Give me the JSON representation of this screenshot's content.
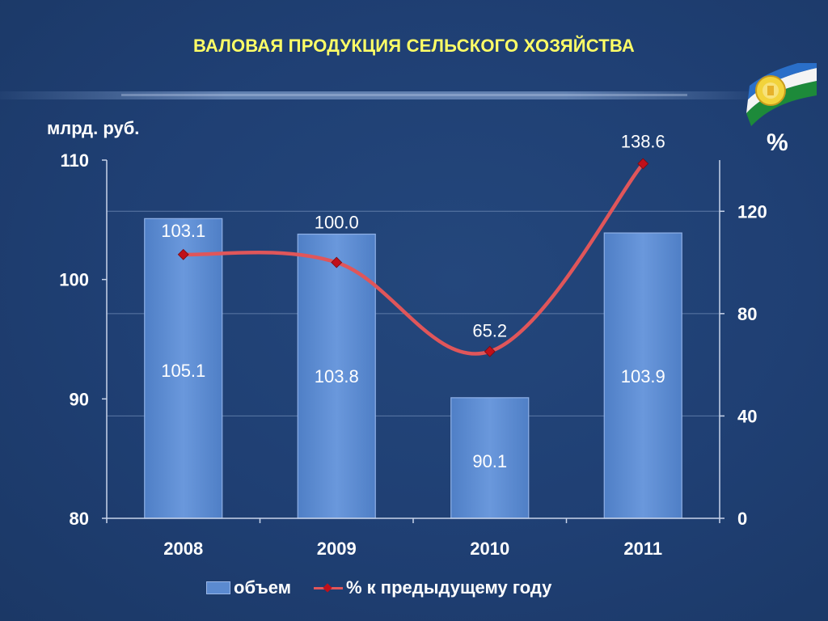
{
  "title": "ВАЛОВАЯ ПРОДУКЦИЯ СЕЛЬСКОГО ХОЗЯЙСТВА",
  "unit_left": "млрд. руб.",
  "unit_right": "%",
  "colors": {
    "background": "#1f3f73",
    "title": "#ffff66",
    "bar": "#5b8ad0",
    "line": "#e0565a",
    "marker": "#c0101a",
    "text": "#ffffff"
  },
  "chart_data": {
    "type": "bar",
    "categories": [
      "2008",
      "2009",
      "2010",
      "2011"
    ],
    "series": [
      {
        "name": "объем",
        "type": "bar",
        "axis": "left",
        "values": [
          105.1,
          103.8,
          90.1,
          103.9
        ],
        "labels": [
          "105.1",
          "103.8",
          "90.1",
          "103.9"
        ]
      },
      {
        "name": "% к предыдущему году",
        "type": "line",
        "axis": "right",
        "values": [
          103.1,
          100.0,
          65.2,
          138.6
        ],
        "labels": [
          "103.1",
          "100.0",
          "65.2",
          "138.6"
        ]
      }
    ],
    "y_left": {
      "ticks": [
        "80",
        "90",
        "100",
        "110"
      ],
      "range": [
        80,
        110
      ]
    },
    "y_right": {
      "ticks": [
        "0",
        "40",
        "80",
        "120"
      ],
      "range": [
        0,
        140
      ]
    },
    "grid": true,
    "legend_position": "bottom"
  }
}
